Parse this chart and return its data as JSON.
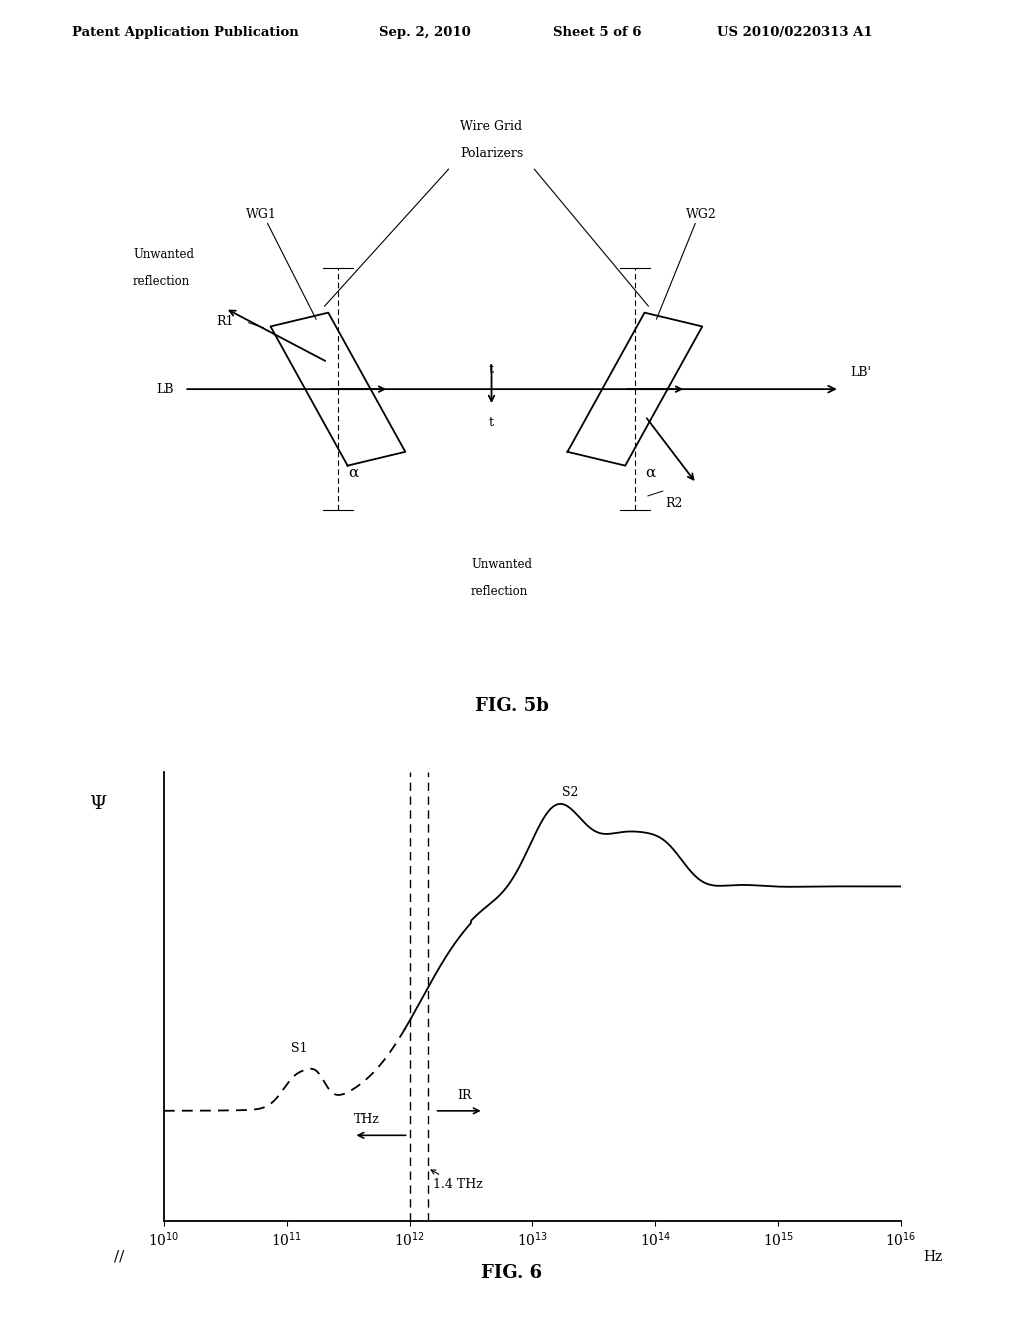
{
  "bg_color": "#ffffff",
  "header_text": "Patent Application Publication",
  "header_date": "Sep. 2, 2010",
  "header_sheet": "Sheet 5 of 6",
  "header_patent": "US 2010/0220313 A1",
  "fig5b_label": "FIG. 5b",
  "fig6_label": "FIG. 6",
  "line_color": "#000000",
  "fig6_xticks": [
    10000000000.0,
    100000000000.0,
    1000000000000.0,
    10000000000000.0,
    100000000000000.0,
    1000000000000000.0,
    1e+16
  ],
  "fig6_xtick_labels": [
    "10$^{10}$",
    "10$^{11}$",
    "10$^{12}$",
    "10$^{13}$",
    "10$^{14}$",
    "10$^{15}$",
    "10$^{16}$"
  ]
}
